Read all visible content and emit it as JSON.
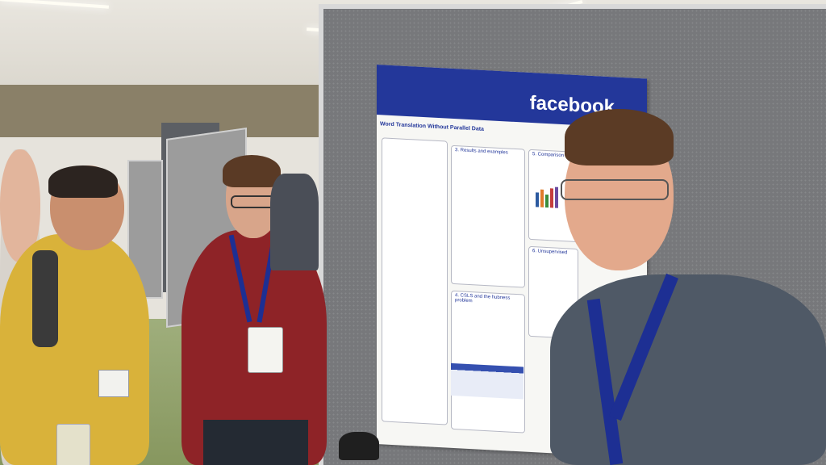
{
  "poster": {
    "logo": "facebook",
    "title": "Word Translation Without Parallel Data",
    "section_results": "3. Results and examples",
    "section_comparison": "5. Comparison to",
    "section_unsupervised": "6. Unsupervised",
    "section_csls": "4. CSLS and the hubness problem"
  },
  "colors": {
    "poster_header": "#23379a",
    "lanyard": "#1d2f93",
    "shirt_red": "#8e2327",
    "shirt_yellow": "#d9b23a",
    "shirt_gray": "#4f5966"
  }
}
